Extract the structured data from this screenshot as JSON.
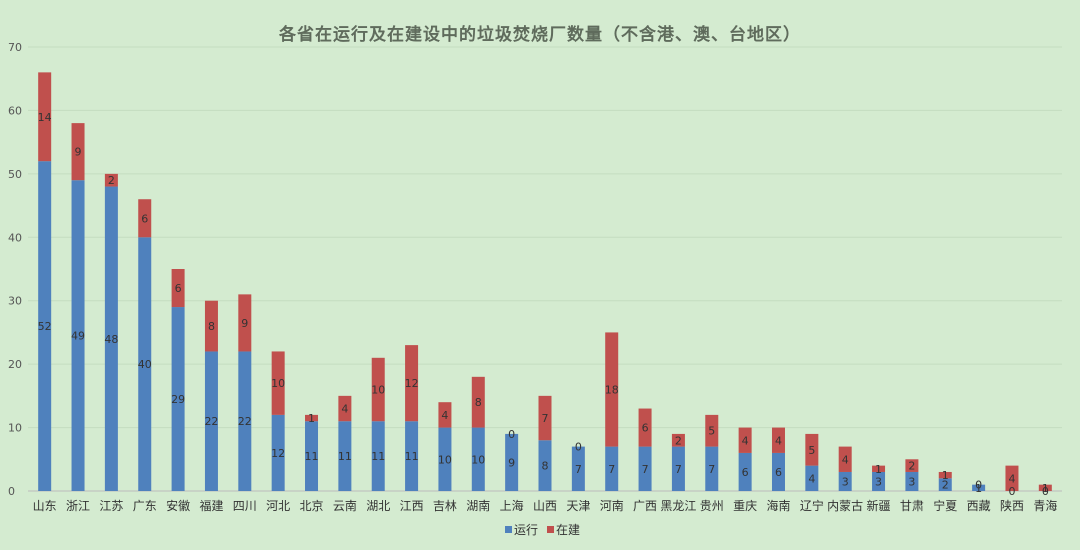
{
  "chart_data": {
    "type": "bar",
    "stacked": true,
    "title": "各省在运行及在建设中的垃圾焚烧厂数量（不含港、澳、台地区）",
    "xlabel": "",
    "ylabel": "",
    "ylim": [
      0,
      70
    ],
    "yticks": [
      0,
      10,
      20,
      30,
      40,
      50,
      60,
      70
    ],
    "grid": true,
    "legend_position": "bottom",
    "categories": [
      "山东",
      "浙江",
      "江苏",
      "广东",
      "安徽",
      "福建",
      "四川",
      "河北",
      "北京",
      "云南",
      "湖北",
      "江西",
      "吉林",
      "湖南",
      "上海",
      "山西",
      "天津",
      "河南",
      "广西",
      "黑龙江",
      "贵州",
      "重庆",
      "海南",
      "辽宁",
      "内蒙古",
      "新疆",
      "甘肃",
      "宁夏",
      "西藏",
      "陕西",
      "青海"
    ],
    "series": [
      {
        "name": "运行",
        "color": "#4f81bd",
        "values": [
          52,
          49,
          48,
          40,
          29,
          22,
          22,
          12,
          11,
          11,
          11,
          11,
          10,
          10,
          9,
          8,
          7,
          7,
          7,
          7,
          7,
          6,
          6,
          4,
          3,
          3,
          3,
          2,
          1,
          0,
          0
        ]
      },
      {
        "name": "在建",
        "color": "#c0504d",
        "values": [
          14,
          9,
          2,
          6,
          6,
          8,
          9,
          10,
          1,
          4,
          10,
          12,
          4,
          8,
          0,
          7,
          0,
          18,
          6,
          2,
          5,
          4,
          4,
          5,
          4,
          1,
          2,
          1,
          0,
          4,
          1
        ]
      }
    ]
  }
}
